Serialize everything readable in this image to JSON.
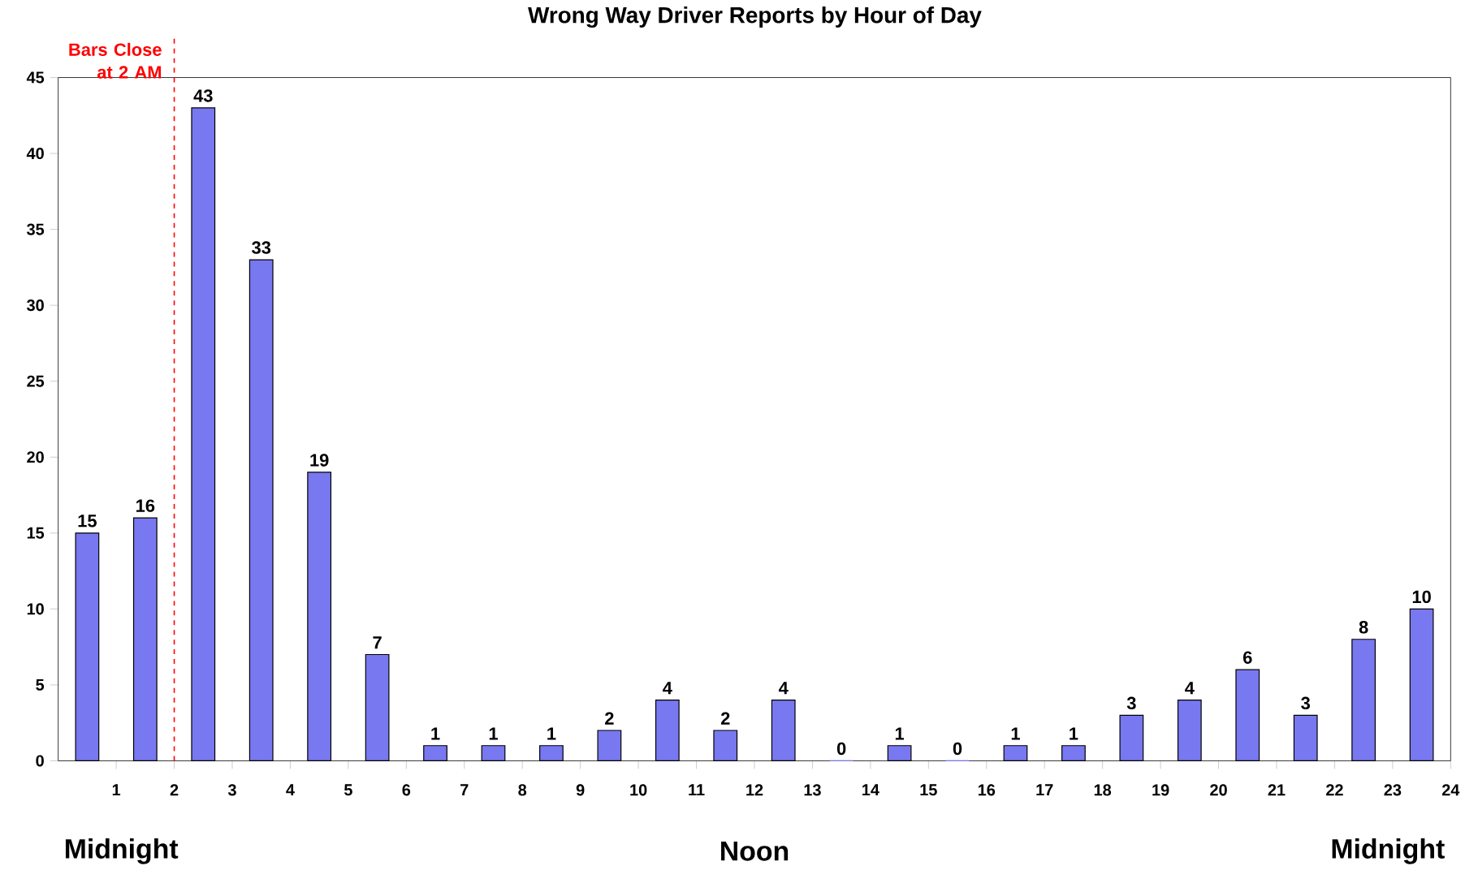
{
  "chart_data": {
    "type": "bar",
    "title": "Wrong Way Driver Reports by Hour of Day",
    "x": [
      0.5,
      1.5,
      2.5,
      3.5,
      4.5,
      5.5,
      6.5,
      7.5,
      8.5,
      9.5,
      10.5,
      11.5,
      12.5,
      13.5,
      14.5,
      15.5,
      16.5,
      17.5,
      18.5,
      19.5,
      20.5,
      21.5,
      22.5,
      23.5
    ],
    "values": [
      15,
      16,
      43,
      33,
      19,
      7,
      1,
      1,
      1,
      2,
      4,
      2,
      4,
      0,
      1,
      0,
      1,
      1,
      3,
      4,
      6,
      3,
      8,
      10
    ],
    "color": "#7878f0",
    "xlim": [
      0,
      24
    ],
    "xticks": [
      1,
      2,
      3,
      4,
      5,
      6,
      7,
      8,
      9,
      10,
      11,
      12,
      13,
      14,
      15,
      16,
      17,
      18,
      19,
      20,
      21,
      22,
      23,
      24
    ],
    "ylim": [
      0,
      45
    ],
    "yticks": [
      0,
      5,
      10,
      15,
      20,
      25,
      30,
      35,
      40,
      45
    ],
    "data_labels": true,
    "ref_lines": [
      {
        "axis": "x",
        "value": 2,
        "label": "Bars Close at 2 AM",
        "color": "#ff0000",
        "line_style": "dashed"
      }
    ],
    "annotations": [
      "Midnight",
      "Noon",
      "Midnight"
    ]
  }
}
